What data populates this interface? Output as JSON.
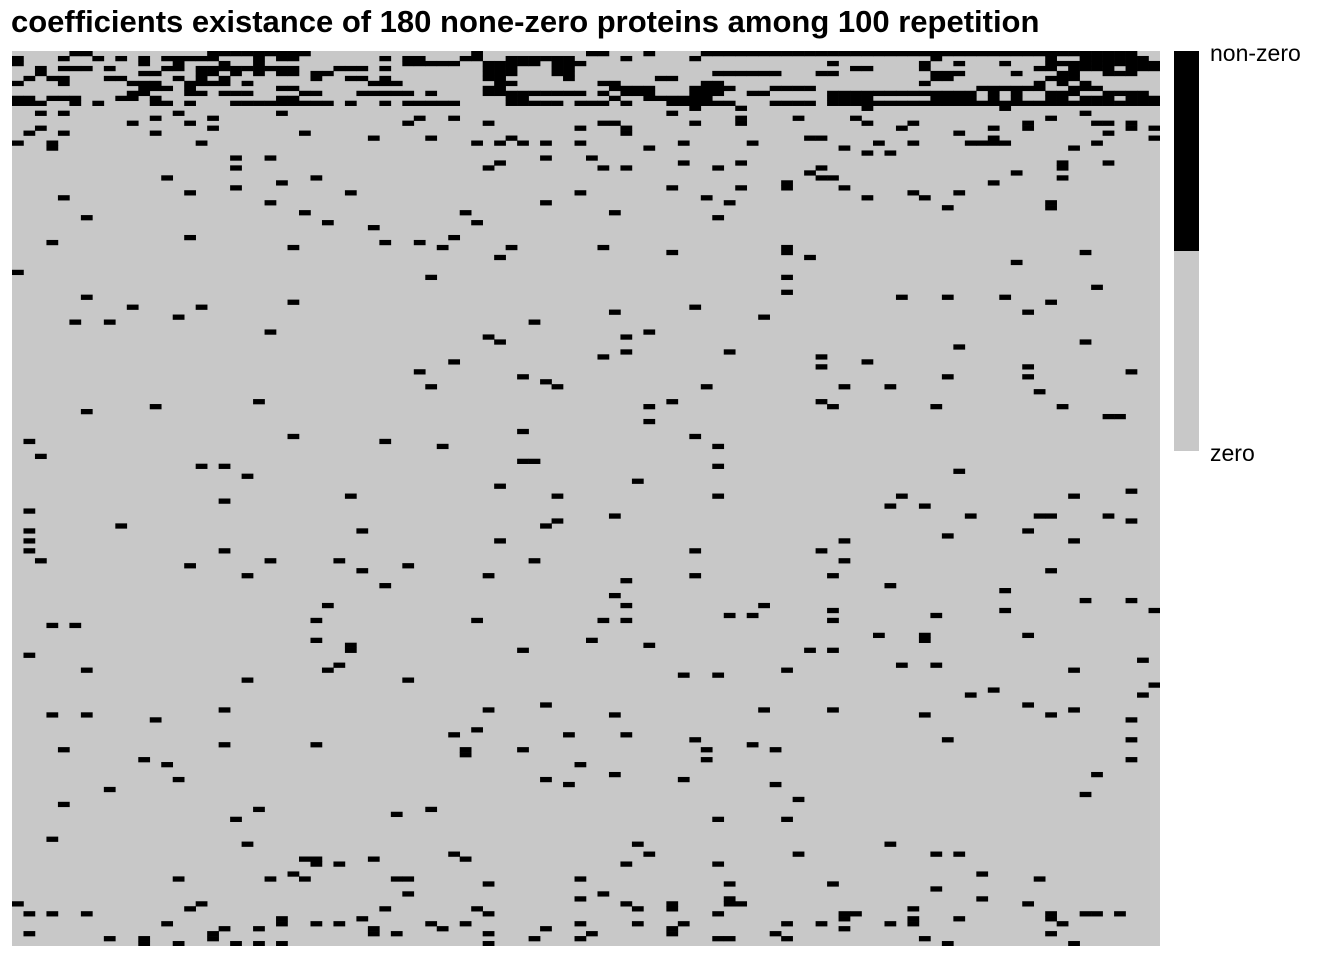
{
  "chart_data": {
    "type": "heatmap",
    "title": "coefficients existance of 180 none-zero proteins among 100 repetition",
    "xlabel": "",
    "ylabel": "",
    "n_columns": 100,
    "n_rows": 180,
    "value_encoding": "1 = non-zero, 0 = zero",
    "legend": {
      "placement": "right",
      "entries": [
        {
          "label": "non-zero",
          "value": 1,
          "color": "#000000"
        },
        {
          "label": "zero",
          "value": 0,
          "color": "#c8c8c8"
        }
      ]
    },
    "nonzero_cells_by_row": [
      [
        5,
        6,
        17,
        18,
        19,
        20,
        21,
        22,
        23,
        24,
        25,
        40,
        50,
        51,
        55,
        60,
        61,
        62,
        63,
        64,
        65,
        66,
        67,
        68,
        69,
        70,
        71,
        72,
        73,
        74,
        75,
        76,
        77,
        78,
        79,
        80,
        81,
        82,
        83,
        84,
        85,
        86,
        87,
        88,
        89,
        90,
        91,
        92,
        93,
        94,
        95,
        96,
        97
      ],
      [
        0,
        4,
        7,
        9,
        11,
        13,
        14,
        15,
        16,
        17,
        21,
        23,
        24,
        32,
        34,
        35,
        39,
        40,
        43,
        44,
        45,
        46,
        47,
        48,
        53,
        59,
        80,
        90,
        93,
        94,
        95,
        96,
        97,
        98
      ],
      [
        0,
        11,
        14,
        18,
        21,
        34,
        35,
        36,
        37,
        38,
        41,
        42,
        43,
        44,
        45,
        47,
        48,
        49,
        71,
        79,
        82,
        86,
        90,
        91,
        92,
        93,
        94,
        95,
        96,
        97,
        98,
        99
      ],
      [
        2,
        4,
        5,
        6,
        8,
        13,
        14,
        16,
        17,
        18,
        19,
        20,
        21,
        22,
        23,
        24,
        28,
        29,
        30,
        32,
        41,
        42,
        43,
        47,
        48,
        73,
        74,
        79,
        89,
        90,
        92,
        93,
        94,
        95,
        97,
        98,
        99
      ],
      [
        2,
        11,
        12,
        16,
        17,
        19,
        21,
        23,
        24,
        26,
        27,
        41,
        42,
        43,
        47,
        48,
        61,
        62,
        63,
        64,
        65,
        66,
        70,
        71,
        80,
        81,
        82,
        87,
        91,
        92,
        95,
        96,
        97
      ],
      [
        1,
        3,
        4,
        8,
        9,
        14,
        16,
        18,
        26,
        29,
        30,
        32,
        41,
        42,
        48,
        56,
        57,
        80,
        81,
        90,
        91,
        92
      ],
      [
        0,
        4,
        10,
        11,
        12,
        15,
        16,
        17,
        18,
        20,
        31,
        32,
        33,
        42,
        43,
        51,
        52,
        60,
        61,
        79,
        89,
        91,
        93
      ],
      [
        11,
        12,
        13,
        15,
        23,
        24,
        41,
        42,
        52,
        53,
        54,
        55,
        59,
        60,
        61,
        62,
        66,
        67,
        68,
        69,
        84,
        85,
        86,
        87,
        88,
        89,
        92,
        93,
        94
      ],
      [
        10,
        11,
        15,
        16,
        18,
        19,
        20,
        25,
        26,
        30,
        31,
        32,
        33,
        34,
        36,
        41,
        42,
        43,
        44,
        45,
        46,
        47,
        48,
        49,
        51,
        53,
        54,
        55,
        59,
        60,
        61,
        64,
        65,
        71,
        72,
        73,
        74,
        75,
        76,
        77,
        78,
        79,
        80,
        81,
        82,
        83,
        85,
        87,
        90,
        91,
        92,
        95,
        96,
        97,
        98
      ],
      [
        0,
        1,
        3,
        4,
        5,
        9,
        10,
        12,
        23,
        24,
        43,
        44,
        52,
        55,
        56,
        57,
        58,
        59,
        60,
        71,
        72,
        73,
        74,
        80,
        81,
        82,
        83,
        85,
        87,
        90,
        91,
        93,
        94,
        95,
        97,
        98,
        99
      ],
      [
        0,
        1,
        2,
        5,
        7,
        12,
        13,
        15,
        19,
        20,
        21,
        22,
        23,
        24,
        25,
        26,
        27,
        29,
        32,
        34,
        35,
        36,
        37,
        38,
        43,
        44,
        45,
        46,
        47,
        49,
        50,
        51,
        53,
        57,
        58,
        59,
        60,
        61,
        62,
        66,
        67,
        68,
        69,
        71,
        72,
        73,
        74,
        75,
        76,
        77,
        78,
        79,
        80,
        81,
        82,
        83,
        84,
        85,
        86,
        87,
        88,
        89,
        90,
        91,
        92,
        93,
        94,
        95,
        96,
        97,
        98,
        99
      ]
    ]
  }
}
